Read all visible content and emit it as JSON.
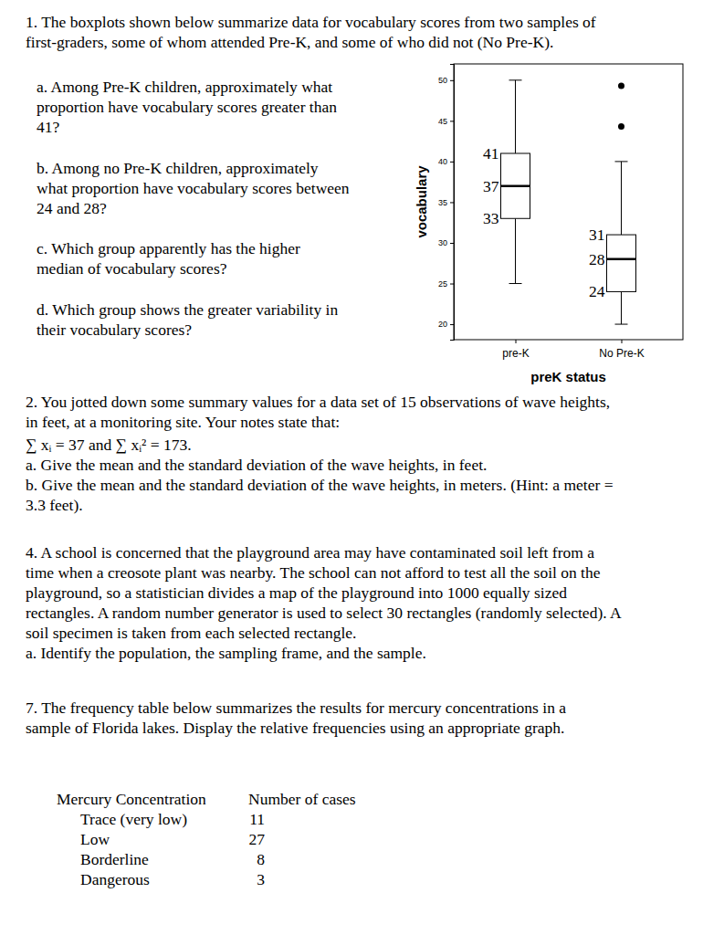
{
  "document": {
    "question1": {
      "intro": [
        "1. The boxplots shown below summarize data for vocabulary scores from two samples of",
        "first-graders, some of whom attended Pre-K, and some of who did not (No Pre-K)."
      ],
      "a": [
        "a. Among Pre-K children, approximately what",
        "proportion have vocabulary scores greater than",
        "41?"
      ],
      "b": [
        "b. Among no Pre-K children, approximately",
        "what proportion have vocabulary scores between",
        "24 and 28?"
      ],
      "c": [
        "c. Which group apparently has the higher",
        "median of vocabulary scores?"
      ],
      "d": [
        "d. Which group shows the greater variability in",
        "their vocabulary scores?"
      ]
    },
    "question2": {
      "lines": [
        "2. You jotted down some summary values for a data set of 15 observations of wave heights,",
        "in feet, at a monitoring site. Your notes state that:",
        "∑ xᵢ = 37 and ∑ xᵢ² = 173.",
        "a. Give the mean and the standard deviation of the wave heights, in feet.",
        "b. Give the mean and the standard deviation of the wave heights, in meters. (Hint: a meter =",
        "3.3 feet)."
      ]
    },
    "question4": {
      "lines": [
        "4. A school is concerned that the playground area may have contaminated soil left from a",
        "time when a creosote plant was nearby. The school can not afford to test all the soil on the",
        "playground, so a statistician divides a map of the playground into 1000 equally sized",
        "rectangles. A random number generator is used to select 30 rectangles (randomly selected). A",
        "soil specimen is taken from each selected rectangle.",
        "a. Identify the population, the sampling frame, and the sample."
      ]
    },
    "question7": {
      "lines": [
        "7.  The frequency table below summarizes the results for mercury concentrations in a",
        "sample of Florida lakes.  Display the relative frequencies using an appropriate graph."
      ],
      "table": {
        "header": [
          "Mercury Concentration",
          "Number of cases"
        ],
        "rows": [
          [
            "Trace (very low)",
            11
          ],
          [
            "Low",
            27
          ],
          [
            "Borderline",
            8
          ],
          [
            "Dangerous",
            3
          ]
        ]
      }
    }
  },
  "chart_data": {
    "type": "boxplot",
    "categories": [
      "pre-K",
      "No Pre-K"
    ],
    "boxes": [
      {
        "whisker_low": 25,
        "q1": 33,
        "median": 37,
        "q3": 41,
        "whisker_high": 50,
        "outliers": []
      },
      {
        "whisker_low": 20,
        "q1": 24,
        "median": 28,
        "q3": 31,
        "whisker_high": 40,
        "outliers": [
          49.3,
          44.3
        ]
      }
    ],
    "xlabel": "preK status",
    "ylabel": "vocabulary",
    "ylim": [
      18.1,
      52
    ],
    "yticks": [
      20,
      25,
      30,
      35,
      40,
      45,
      50
    ],
    "data_labels": true
  }
}
